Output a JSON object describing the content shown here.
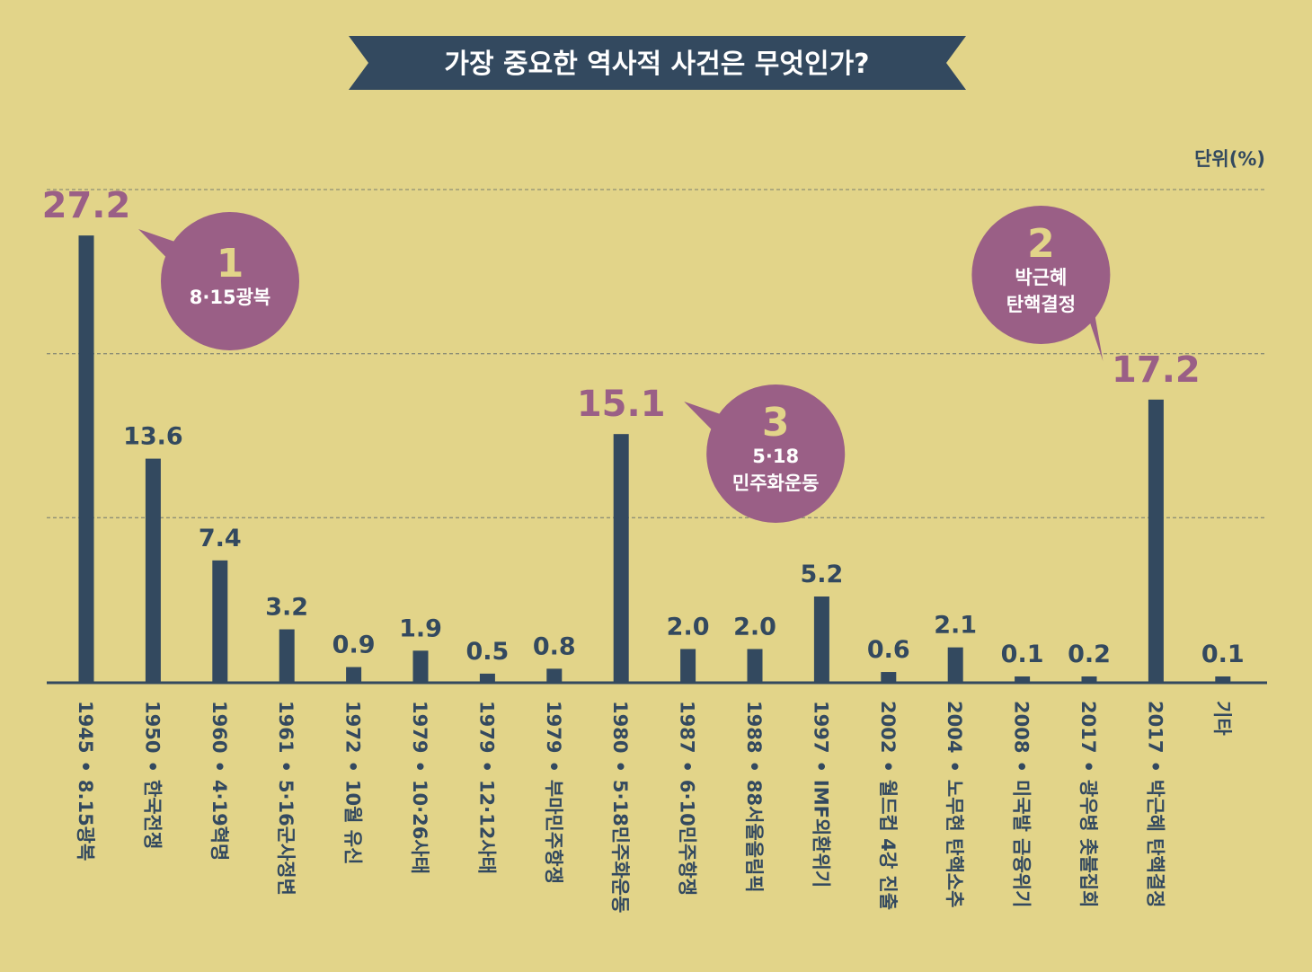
{
  "header": {
    "title": "가장 중요한 역사적 사건은 무엇인가?"
  },
  "unit_label": "단위(%)",
  "colors": {
    "background": "#E2D489",
    "bar": "#33495F",
    "accent": "#9A5F86",
    "rank_number": "#E2D489"
  },
  "chart_data": {
    "type": "bar",
    "title": "가장 중요한 역사적 사건은 무엇인가?",
    "ylabel": "단위(%)",
    "ylim": [
      0,
      30
    ],
    "grid": true,
    "categories": [
      {
        "year": "1945",
        "event": "8.15광복"
      },
      {
        "year": "1950",
        "event": "한국전쟁"
      },
      {
        "year": "1960",
        "event": "4·19혁명"
      },
      {
        "year": "1961",
        "event": "5·16군사정변"
      },
      {
        "year": "1972",
        "event": "10월 유신"
      },
      {
        "year": "1979",
        "event": "10·26사태"
      },
      {
        "year": "1979",
        "event": "12·12사태"
      },
      {
        "year": "1979",
        "event": "부마민주항쟁"
      },
      {
        "year": "1980",
        "event": "5·18민주화운동"
      },
      {
        "year": "1987",
        "event": "6·10민주항쟁"
      },
      {
        "year": "1988",
        "event": "88서울올림픽"
      },
      {
        "year": "1997",
        "event": "IMF외환위기"
      },
      {
        "year": "2002",
        "event": "월드컵 4강 진출"
      },
      {
        "year": "2004",
        "event": "노무현 탄핵소추"
      },
      {
        "year": "2008",
        "event": "미국발 금융위기"
      },
      {
        "year": "2017",
        "event": "광우병 촛불집회"
      },
      {
        "year": "2017",
        "event": "박근혜 탄핵결정"
      },
      {
        "year": "",
        "event": "기타"
      }
    ],
    "values": [
      27.2,
      13.6,
      7.4,
      3.2,
      0.9,
      1.9,
      0.5,
      0.8,
      15.1,
      2.0,
      2.0,
      5.2,
      0.6,
      2.1,
      0.1,
      0.2,
      17.2,
      0.1
    ],
    "value_labels": [
      "27.2",
      "13.6",
      "7.4",
      "3.2",
      "0.9",
      "1.9",
      "0.5",
      "0.8",
      "15.1",
      "2.0",
      "2.0",
      "5.2",
      "0.6",
      "2.1",
      "0.1",
      "0.2",
      "17.2",
      "0.1"
    ],
    "annotations": [
      {
        "index": 0,
        "rank": "1",
        "lines": [
          "8·15광복"
        ]
      },
      {
        "index": 16,
        "rank": "2",
        "lines": [
          "박근혜",
          "탄핵결정"
        ]
      },
      {
        "index": 8,
        "rank": "3",
        "lines": [
          "5·18",
          "민주화운동"
        ]
      }
    ]
  }
}
